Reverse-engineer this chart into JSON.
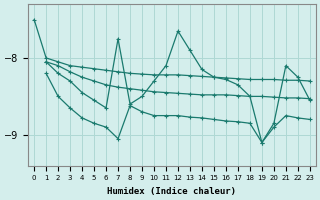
{
  "xlabel": "Humidex (Indice chaleur)",
  "background_color": "#d4eeec",
  "grid_color": "#aed8d4",
  "line_color": "#1a7a6e",
  "xlim": [
    -0.5,
    23.5
  ],
  "ylim": [
    -9.4,
    -7.3
  ],
  "yticks": [
    -9,
    -8
  ],
  "line1_x": [
    0,
    1,
    2,
    3,
    4,
    5,
    6,
    7,
    8,
    9,
    10,
    11,
    12,
    13,
    14,
    15,
    16,
    17,
    18,
    19,
    20,
    21,
    22,
    23
  ],
  "line1_y": [
    -7.5,
    -8.0,
    -8.05,
    -8.1,
    -8.12,
    -8.14,
    -8.16,
    -8.18,
    -8.2,
    -8.21,
    -8.22,
    -8.22,
    -8.22,
    -8.23,
    -8.24,
    -8.25,
    -8.26,
    -8.27,
    -8.28,
    -8.28,
    -8.28,
    -8.29,
    -8.29,
    -8.3
  ],
  "line2_x": [
    1,
    2,
    3,
    4,
    5,
    6,
    7,
    8,
    9,
    10,
    11,
    12,
    13,
    14,
    15,
    16,
    17,
    18,
    19,
    20,
    21,
    22,
    23
  ],
  "line2_y": [
    -8.05,
    -8.1,
    -8.18,
    -8.25,
    -8.3,
    -8.35,
    -8.38,
    -8.4,
    -8.42,
    -8.44,
    -8.45,
    -8.46,
    -8.47,
    -8.48,
    -8.48,
    -8.48,
    -8.49,
    -8.5,
    -8.5,
    -8.51,
    -8.52,
    -8.52,
    -8.53
  ],
  "line3_x": [
    1,
    2,
    3,
    4,
    5,
    6,
    7,
    8,
    9,
    10,
    11,
    12,
    13,
    14,
    15,
    16,
    17,
    18,
    19,
    20,
    21,
    22,
    23
  ],
  "line3_y": [
    -8.05,
    -8.2,
    -8.3,
    -8.45,
    -8.55,
    -8.65,
    -7.75,
    -8.6,
    -8.5,
    -8.3,
    -8.1,
    -7.65,
    -7.9,
    -8.15,
    -8.25,
    -8.28,
    -8.35,
    -8.5,
    -9.1,
    -8.85,
    -8.1,
    -8.25,
    -8.55
  ],
  "line4_x": [
    1,
    2,
    3,
    4,
    5,
    6,
    7,
    8,
    9,
    10,
    11,
    12,
    13,
    14,
    15,
    16,
    17,
    18,
    19,
    20,
    21,
    22,
    23
  ],
  "line4_y": [
    -8.2,
    -8.5,
    -8.65,
    -8.78,
    -8.85,
    -8.9,
    -9.05,
    -8.62,
    -8.7,
    -8.75,
    -8.75,
    -8.75,
    -8.77,
    -8.78,
    -8.8,
    -8.82,
    -8.83,
    -8.85,
    -9.1,
    -8.9,
    -8.75,
    -8.78,
    -8.8
  ]
}
